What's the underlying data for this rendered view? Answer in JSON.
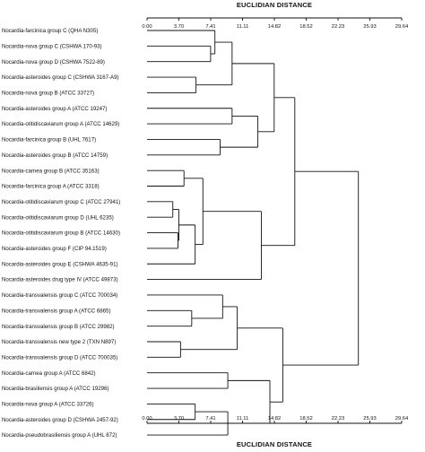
{
  "chart_data": {
    "type": "dendrogram",
    "axis_title_top": "EUCLIDIAN DISTANCE",
    "axis_title_bottom": "EUCLIDIAN DISTANCE",
    "xlim": [
      0,
      29.64
    ],
    "ticks": [
      "0.00",
      "3.70",
      "7.41",
      "11.11",
      "14.82",
      "18.52",
      "22.23",
      "25.93",
      "29.64"
    ],
    "leaves": [
      "Nocardia-farcinica group C (QHA N305)",
      "Nocardia-nova group C (CSHWA 170-93)",
      "Nocardia-nova group D (CSHWA 7522-89)",
      "Nocardia-asteroides group C (CSHWA 3167-A9)",
      "Nocardia-nova group B (ATCC 33727)",
      "Nocardia-asteroides group A (ATCC 19247)",
      "Nocardia-otitidiscaviarum group A (ATCC 14629)",
      "Nocardia-farcinica group B (UHL 7617)",
      "Nocardia-asteroides group B (ATCC 14759)",
      "Nocardia-carnea group B (ATCC 35163)",
      "Nocardia-farcinica group A (ATCC 3318)",
      "Nocardia-otitidiscaviarum group C (ATCC 27941)",
      "Nocardia-otitidiscaviarum group D (UHL 6235)",
      "Nocardia-otitidiscaviarum group B (ATCC 14630)",
      "Nocardia-asteroides group F (CIP 94.1519)",
      "Nocardia-asteroides group E (CSHWA 4635-91)",
      "Nocardia-asteroides drug type IV (ATCC 49873)",
      "Nocardia-transvalensis group C (ATCC 700034)",
      "Nocardia-transvalensis group A (ATCC 6865)",
      "Nocardia-transvalensis group B (ATCC 29982)",
      "Nocardia-transvalensis new type 2 (TXN N897)",
      "Nocardia-transvalensis group D (ATCC 700035)",
      "Nocardia-carnea group A (ATCC 6842)",
      "Nocardia-brasiliensis group A (ATCC 19296)",
      "Nocardia-nova group A (ATCC 33726)",
      "Nocardia-asteroides group D (CSHWA 2457-92)",
      "Nocardia-pseudobrasiliensis group A (UHL 872)"
    ],
    "merges": [
      {
        "left": 1,
        "right": 2,
        "height": 7.4
      },
      {
        "left": 3,
        "right": 4,
        "height": 5.7
      },
      {
        "left": 0,
        "right": "m0",
        "height": 7.9
      },
      {
        "left": "m1",
        "right": "m2",
        "height": 9.9
      },
      {
        "left": 5,
        "right": 6,
        "height": 9.9
      },
      {
        "left": 7,
        "right": 8,
        "height": 8.5
      },
      {
        "left": "m4",
        "right": "m5",
        "height": 12.9
      },
      {
        "left": "m3",
        "right": "m6",
        "height": 14.8
      },
      {
        "left": 9,
        "right": 10,
        "height": 4.3
      },
      {
        "left": 11,
        "right": 12,
        "height": 3.0
      },
      {
        "left": 13,
        "right": 14,
        "height": 3.6
      },
      {
        "left": "m9",
        "right": "m10",
        "height": 3.7
      },
      {
        "left": "m11",
        "right": 15,
        "height": 5.6
      },
      {
        "left": "m8",
        "right": "m12",
        "height": 6.5
      },
      {
        "left": "m13",
        "right": 16,
        "height": 13.3
      },
      {
        "left": "m7",
        "right": "m14",
        "height": 17.2
      },
      {
        "left": 18,
        "right": 19,
        "height": 5.2
      },
      {
        "left": 17,
        "right": "m16",
        "height": 8.8
      },
      {
        "left": 20,
        "right": 21,
        "height": 3.9
      },
      {
        "left": "m17",
        "right": "m18",
        "height": 10.5
      },
      {
        "left": 22,
        "right": 23,
        "height": 9.4
      },
      {
        "left": 24,
        "right": 25,
        "height": 5.6
      },
      {
        "left": "m21",
        "right": 26,
        "height": 9.4
      },
      {
        "left": "m20",
        "right": "m22",
        "height": 14.3
      },
      {
        "left": "m19",
        "right": "m23",
        "height": 15.8
      },
      {
        "left": "m15",
        "right": "m24",
        "height": 24.6
      }
    ]
  }
}
